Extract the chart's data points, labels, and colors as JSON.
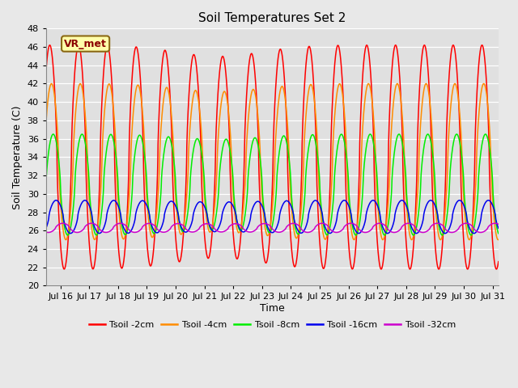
{
  "title": "Soil Temperatures Set 2",
  "xlabel": "Time",
  "ylabel": "Soil Temperature (C)",
  "ylim": [
    20,
    48
  ],
  "yticks": [
    20,
    22,
    24,
    26,
    28,
    30,
    32,
    34,
    36,
    38,
    40,
    42,
    44,
    46,
    48
  ],
  "xlim": [
    15.5,
    31.2
  ],
  "xtick_labels": [
    "Jul 16",
    "Jul 17",
    "Jul 18",
    "Jul 19",
    "Jul 20",
    "Jul 21",
    "Jul 22",
    "Jul 23",
    "Jul 24",
    "Jul 25",
    "Jul 26",
    "Jul 27",
    "Jul 28",
    "Jul 29",
    "Jul 30",
    "Jul 31"
  ],
  "xtick_positions": [
    16,
    17,
    18,
    19,
    20,
    21,
    22,
    23,
    24,
    25,
    26,
    27,
    28,
    29,
    30,
    31
  ],
  "series_params": [
    {
      "label": "Tsoil -2cm",
      "color": "#FF0000",
      "amplitude": 12.2,
      "mean": 34.0,
      "phase_shift": 0.0,
      "min_clip": 21.5
    },
    {
      "label": "Tsoil -4cm",
      "color": "#FF8C00",
      "amplitude": 8.5,
      "mean": 33.5,
      "phase_shift": 0.06,
      "min_clip": 22.5
    },
    {
      "label": "Tsoil -8cm",
      "color": "#00EE00",
      "amplitude": 5.5,
      "mean": 31.0,
      "phase_shift": 0.12,
      "min_clip": 24.0
    },
    {
      "label": "Tsoil -16cm",
      "color": "#0000EE",
      "amplitude": 1.8,
      "mean": 27.5,
      "phase_shift": 0.22,
      "min_clip": 25.0
    },
    {
      "label": "Tsoil -32cm",
      "color": "#CC00CC",
      "amplitude": 0.5,
      "mean": 26.3,
      "phase_shift": 0.45,
      "min_clip": 25.5
    }
  ],
  "annotation_text": "VR_met",
  "outer_bg": "#E8E8E8",
  "plot_bg": "#E0E0E0",
  "grid_color": "#FFFFFF",
  "linewidth": 1.1
}
